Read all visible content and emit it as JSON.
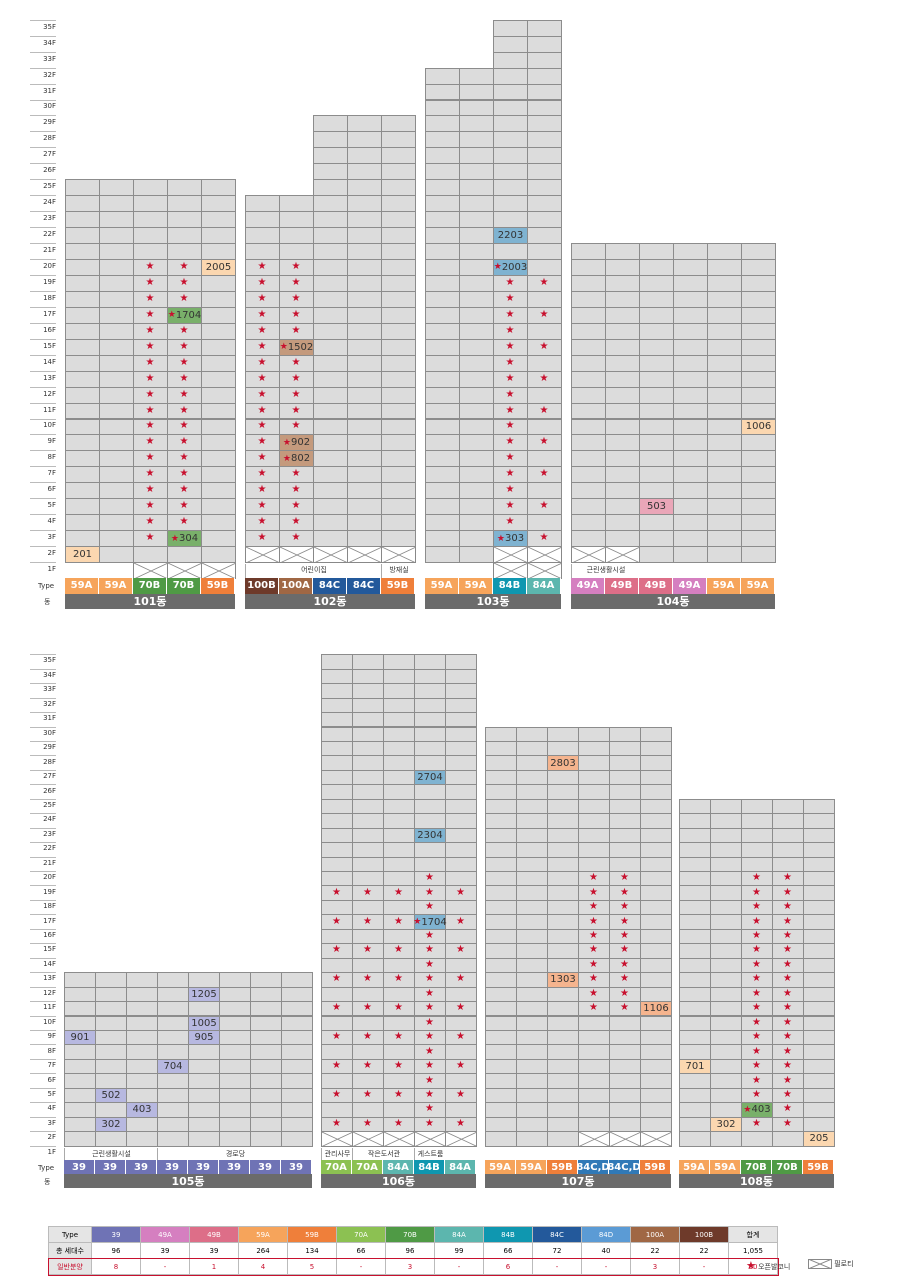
{
  "floor_labels": [
    "1F",
    "2F",
    "3F",
    "4F",
    "5F",
    "6F",
    "7F",
    "8F",
    "9F",
    "10F",
    "11F",
    "12F",
    "13F",
    "14F",
    "15F",
    "16F",
    "17F",
    "18F",
    "19F",
    "20F",
    "21F",
    "22F",
    "23F",
    "24F",
    "25F",
    "26F",
    "27F",
    "28F",
    "29F",
    "30F",
    "31F",
    "32F",
    "33F",
    "34F",
    "35F"
  ],
  "row_labels": {
    "type": "Type",
    "dong": "동"
  },
  "type_colors": {
    "39": "#6f73b5",
    "49A": "#d57fc0",
    "49B": "#dd6e88",
    "59A": "#f6a45b",
    "59B": "#ef7f3a",
    "70A": "#8cc152",
    "70B": "#4f9a45",
    "84A": "#5cb6ae",
    "84B": "#0f97b0",
    "84C": "#23599b",
    "84C,D": "#3079b7",
    "84D": "#5b9bd5",
    "100A": "#a06744",
    "100B": "#6e3a2a"
  },
  "buildings": [
    {
      "name": "101동",
      "floors": [
        25,
        25,
        25,
        25,
        25
      ],
      "types": [
        "59A",
        "59A",
        "70B",
        "70B",
        "59B"
      ],
      "pilotis": [
        [
          1,
          2
        ],
        [
          1,
          3
        ],
        [
          1,
          4
        ]
      ],
      "units": [
        {
          "col": 0,
          "floor": 2,
          "label": "201",
          "color": "#fbd7b0"
        },
        {
          "col": 4,
          "floor": 20,
          "label": "2005",
          "color": "#fbd7b0"
        },
        {
          "col": 3,
          "floor": 17,
          "label": "1704",
          "color": "#79b06a",
          "star": true
        },
        {
          "col": 3,
          "floor": 3,
          "label": "304",
          "color": "#79b06a",
          "star": true
        }
      ],
      "stars": [
        {
          "col": 2,
          "from": 3,
          "to": 20
        },
        {
          "col": 3,
          "from": 4,
          "to": 20
        }
      ],
      "facilities": []
    },
    {
      "name": "102동",
      "floors": [
        24,
        24,
        29,
        29,
        29
      ],
      "types": [
        "100B",
        "100A",
        "84C",
        "84C",
        "59B"
      ],
      "pilotis": [
        [
          2,
          0
        ],
        [
          2,
          1
        ],
        [
          2,
          2
        ],
        [
          2,
          3
        ],
        [
          2,
          4
        ]
      ],
      "units": [
        {
          "col": 1,
          "floor": 15,
          "label": "1502",
          "color": "#c49a7d",
          "star": true
        },
        {
          "col": 1,
          "floor": 9,
          "label": "902",
          "color": "#c49a7d",
          "star": true
        },
        {
          "col": 1,
          "floor": 8,
          "label": "802",
          "color": "#c49a7d",
          "star": true
        }
      ],
      "stars": [
        {
          "col": 0,
          "from": 3,
          "to": 20
        },
        {
          "col": 1,
          "from": 3,
          "to": 20
        }
      ],
      "facilities": [
        {
          "from": 0,
          "to": 3,
          "label": "어린이집"
        },
        {
          "from": 4,
          "to": 4,
          "label": "방재실"
        }
      ]
    },
    {
      "name": "103동",
      "floors": [
        32,
        32,
        35,
        35
      ],
      "types": [
        "59A",
        "59A",
        "84B",
        "84A"
      ],
      "pilotis": [
        [
          1,
          2
        ],
        [
          1,
          3
        ],
        [
          2,
          2
        ],
        [
          2,
          3
        ]
      ],
      "units": [
        {
          "col": 2,
          "floor": 22,
          "label": "2203",
          "color": "#7fb3d1"
        },
        {
          "col": 2,
          "floor": 20,
          "label": "2003",
          "color": "#7fb3d1",
          "star": true
        },
        {
          "col": 2,
          "floor": 3,
          "label": "303",
          "color": "#7fb3d1",
          "star": true
        }
      ],
      "stars": [
        {
          "col": 2,
          "from": 4,
          "to": 19
        },
        {
          "col": 3,
          "list": [
            3,
            5,
            7,
            9,
            11,
            13,
            15,
            17,
            19
          ]
        }
      ],
      "facilities": []
    },
    {
      "name": "104동",
      "floors": [
        21,
        21,
        21,
        21,
        21,
        21
      ],
      "types": [
        "49A",
        "49B",
        "49B",
        "49A",
        "59A",
        "59A"
      ],
      "pilotis": [
        [
          2,
          0
        ],
        [
          2,
          1
        ],
        [
          1,
          2
        ],
        [
          1,
          3
        ]
      ],
      "units": [
        {
          "col": 2,
          "floor": 5,
          "label": "503",
          "color": "#eaa6b8"
        },
        {
          "col": 5,
          "floor": 10,
          "label": "1006",
          "color": "#fbd7b0"
        }
      ],
      "stars": [],
      "facilities": [
        {
          "from": 0,
          "to": 1,
          "label": "근린생활시설"
        }
      ]
    },
    {
      "name": "105동",
      "floors": [
        13,
        13,
        13,
        13,
        13,
        13,
        13,
        13
      ],
      "types": [
        "39",
        "39",
        "39",
        "39",
        "39",
        "39",
        "39",
        "39"
      ],
      "pilotis": [],
      "units": [
        {
          "col": 0,
          "floor": 9,
          "label": "901",
          "color": "#b7b8e0"
        },
        {
          "col": 1,
          "floor": 5,
          "label": "502",
          "color": "#b7b8e0"
        },
        {
          "col": 1,
          "floor": 3,
          "label": "302",
          "color": "#b7b8e0"
        },
        {
          "col": 2,
          "floor": 4,
          "label": "403",
          "color": "#b7b8e0"
        },
        {
          "col": 3,
          "floor": 7,
          "label": "704",
          "color": "#b7b8e0"
        },
        {
          "col": 4,
          "floor": 12,
          "label": "1205",
          "color": "#b7b8e0"
        },
        {
          "col": 4,
          "floor": 10,
          "label": "1005",
          "color": "#b7b8e0"
        },
        {
          "col": 4,
          "floor": 9,
          "label": "905",
          "color": "#b7b8e0"
        }
      ],
      "stars": [],
      "facilities": [
        {
          "from": 0,
          "to": 2,
          "label": "근린생활시설"
        },
        {
          "from": 3,
          "to": 7,
          "label": "경로당"
        }
      ]
    },
    {
      "name": "106동",
      "floors": [
        35,
        35,
        35,
        35,
        35
      ],
      "types": [
        "70A",
        "70A",
        "84A",
        "84B",
        "84A"
      ],
      "pilotis": [
        [
          2,
          0
        ],
        [
          2,
          1
        ],
        [
          2,
          2
        ],
        [
          2,
          3
        ],
        [
          2,
          4
        ]
      ],
      "units": [
        {
          "col": 3,
          "floor": 27,
          "label": "2704",
          "color": "#7fb3d1"
        },
        {
          "col": 3,
          "floor": 23,
          "label": "2304",
          "color": "#7fb3d1"
        },
        {
          "col": 3,
          "floor": 17,
          "label": "1704",
          "color": "#7fb3d1",
          "star": true
        }
      ],
      "stars": [
        {
          "col": 0,
          "list": [
            3,
            5,
            7,
            9,
            11,
            13,
            15,
            17,
            19
          ]
        },
        {
          "col": 1,
          "list": [
            3,
            5,
            7,
            9,
            11,
            13,
            15,
            17,
            19
          ]
        },
        {
          "col": 2,
          "list": [
            3,
            5,
            7,
            9,
            11,
            13,
            15,
            17,
            19
          ]
        },
        {
          "col": 3,
          "from": 3,
          "to": 20
        },
        {
          "col": 4,
          "list": [
            3,
            5,
            7,
            9,
            11,
            13,
            15,
            17,
            19
          ]
        }
      ],
      "facilities": [
        {
          "from": 0,
          "to": 0,
          "label": "관리사무소"
        },
        {
          "from": 1,
          "to": 2,
          "label": "작은도서관"
        },
        {
          "from": 3,
          "to": 3,
          "label": "게스트룸"
        }
      ]
    },
    {
      "name": "107동",
      "floors": [
        30,
        30,
        30,
        30,
        30,
        30
      ],
      "types": [
        "59A",
        "59A",
        "59B",
        "84C,D",
        "84C,D",
        "59B"
      ],
      "pilotis": [
        [
          2,
          3
        ],
        [
          2,
          4
        ],
        [
          2,
          5
        ]
      ],
      "units": [
        {
          "col": 2,
          "floor": 28,
          "label": "2803",
          "color": "#f5b48e"
        },
        {
          "col": 2,
          "floor": 13,
          "label": "1303",
          "color": "#f5b48e"
        },
        {
          "col": 5,
          "floor": 11,
          "label": "1106",
          "color": "#f5b48e"
        }
      ],
      "stars": [
        {
          "col": 3,
          "from": 11,
          "to": 20
        },
        {
          "col": 4,
          "from": 11,
          "to": 20
        }
      ],
      "facilities": []
    },
    {
      "name": "108동",
      "floors": [
        25,
        25,
        25,
        25,
        25
      ],
      "types": [
        "59A",
        "59A",
        "70B",
        "70B",
        "59B"
      ],
      "pilotis": [],
      "units": [
        {
          "col": 0,
          "floor": 7,
          "label": "701",
          "color": "#fbd7b0"
        },
        {
          "col": 1,
          "floor": 3,
          "label": "302",
          "color": "#fbd7b0"
        },
        {
          "col": 2,
          "floor": 4,
          "label": "403",
          "color": "#79b06a",
          "star": true
        },
        {
          "col": 4,
          "floor": 2,
          "label": "205",
          "color": "#fbd7b0"
        }
      ],
      "stars": [
        {
          "col": 2,
          "from": 3,
          "to": 20
        },
        {
          "col": 3,
          "from": 3,
          "to": 20
        }
      ],
      "facilities": []
    }
  ],
  "summary": {
    "headers": [
      "Type",
      "39",
      "49A",
      "49B",
      "59A",
      "59B",
      "70A",
      "70B",
      "84A",
      "84B",
      "84C",
      "84D",
      "100A",
      "100B",
      "합계"
    ],
    "rows": [
      {
        "label": "총 세대수",
        "values": [
          "96",
          "39",
          "39",
          "264",
          "134",
          "66",
          "96",
          "99",
          "66",
          "72",
          "40",
          "22",
          "22",
          "1,055"
        ]
      },
      {
        "label": "일반분양",
        "values": [
          "8",
          "-",
          "1",
          "4",
          "5",
          "-",
          "3",
          "-",
          "6",
          "-",
          "-",
          "3",
          "-",
          "30"
        ]
      }
    ]
  },
  "legend": {
    "star_label": "오픈발코니",
    "pilotis_label": "필로티"
  }
}
